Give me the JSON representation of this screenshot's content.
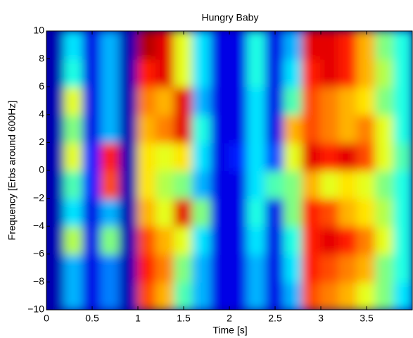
{
  "chart_data": {
    "type": "spectrogram",
    "title": "Hungry Baby",
    "x_label": "Time [s]",
    "y_label": "Frequency [Erbs around 600Hz]",
    "colormap": "jet",
    "xbins": [
      0,
      0.2,
      0.4,
      0.6,
      0.8,
      1.0,
      1.2,
      1.4,
      1.6,
      1.8,
      2.0,
      2.2,
      2.4,
      2.6,
      2.8,
      3.0,
      3.2,
      3.4,
      3.6,
      3.8,
      4.0
    ],
    "ybins": [
      -10,
      -8,
      -6,
      -4,
      -2,
      0,
      2,
      4,
      6,
      8,
      10
    ],
    "z": [
      [
        0.05,
        0.3,
        0.1,
        0.25,
        0.05,
        0.8,
        0.7,
        0.45,
        0.3,
        0.1,
        0.1,
        0.3,
        0.1,
        0.3,
        0.8,
        0.75,
        0.7,
        0.6,
        0.5,
        0.35
      ],
      [
        0.05,
        0.3,
        0.1,
        0.25,
        0.05,
        0.85,
        0.75,
        0.5,
        0.3,
        0.1,
        0.1,
        0.3,
        0.1,
        0.35,
        0.85,
        0.8,
        0.75,
        0.7,
        0.5,
        0.4
      ],
      [
        0.05,
        0.55,
        0.1,
        0.5,
        0.05,
        0.8,
        0.7,
        0.6,
        0.35,
        0.1,
        0.1,
        0.35,
        0.1,
        0.4,
        0.85,
        0.9,
        0.85,
        0.75,
        0.6,
        0.4
      ],
      [
        0.05,
        0.35,
        0.1,
        0.3,
        0.05,
        0.7,
        0.6,
        0.9,
        0.5,
        0.1,
        0.1,
        0.4,
        0.1,
        0.5,
        0.85,
        0.8,
        0.7,
        0.65,
        0.55,
        0.4
      ],
      [
        0.05,
        0.45,
        0.15,
        0.8,
        0.05,
        0.65,
        0.55,
        0.5,
        0.3,
        0.1,
        0.1,
        0.35,
        0.45,
        0.5,
        0.7,
        0.6,
        0.65,
        0.6,
        0.5,
        0.4
      ],
      [
        0.05,
        0.6,
        0.15,
        0.85,
        0.05,
        0.65,
        0.6,
        0.65,
        0.35,
        0.1,
        0.15,
        0.35,
        0.2,
        0.6,
        0.9,
        0.85,
        0.9,
        0.8,
        0.6,
        0.45
      ],
      [
        0.05,
        0.5,
        0.1,
        0.3,
        0.05,
        0.7,
        0.75,
        0.9,
        0.4,
        0.1,
        0.1,
        0.35,
        0.1,
        0.7,
        0.8,
        0.75,
        0.7,
        0.75,
        0.6,
        0.4
      ],
      [
        0.05,
        0.6,
        0.1,
        0.3,
        0.05,
        0.75,
        0.7,
        0.9,
        0.3,
        0.1,
        0.1,
        0.35,
        0.1,
        0.45,
        0.8,
        0.75,
        0.7,
        0.65,
        0.5,
        0.4
      ],
      [
        0.05,
        0.4,
        0.1,
        0.3,
        0.05,
        0.85,
        0.9,
        0.6,
        0.35,
        0.1,
        0.1,
        0.4,
        0.1,
        0.35,
        0.85,
        0.9,
        0.85,
        0.7,
        0.55,
        0.4
      ],
      [
        0.05,
        0.35,
        0.1,
        0.3,
        0.05,
        0.95,
        0.9,
        0.6,
        0.35,
        0.1,
        0.1,
        0.4,
        0.1,
        0.3,
        0.9,
        0.9,
        0.85,
        0.7,
        0.5,
        0.4
      ]
    ],
    "xlim": [
      0,
      4
    ],
    "ylim": [
      -10,
      10
    ],
    "xticks": [
      0,
      0.5,
      1,
      1.5,
      2,
      2.5,
      3,
      3.5
    ],
    "yticks": [
      {
        "value": -10,
        "label": "−10"
      },
      {
        "value": -8,
        "label": "−8"
      },
      {
        "value": -6,
        "label": "−6"
      },
      {
        "value": -4,
        "label": "−4"
      },
      {
        "value": -2,
        "label": "−2"
      },
      0,
      2,
      4,
      6,
      8,
      10
    ]
  }
}
